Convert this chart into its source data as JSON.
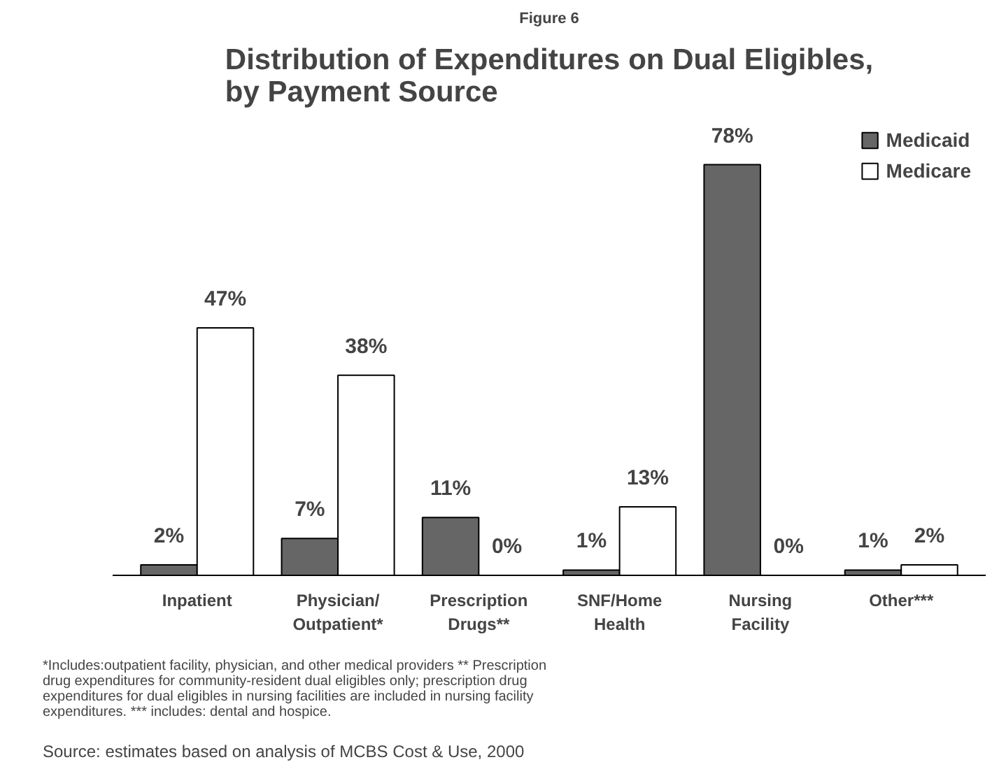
{
  "chart_data": {
    "type": "bar",
    "subtitle": "Figure 6",
    "title": "Distribution of Expenditures on Dual Eligibles,\nby Payment Source",
    "categories": [
      "Inpatient",
      "Physician/\nOutpatient*",
      "Prescription\nDrugs**",
      "SNF/Home\nHealth",
      "Nursing\nFacility",
      "Other***"
    ],
    "series": [
      {
        "name": "Medicaid",
        "color": "#666666",
        "values": [
          2,
          7,
          11,
          1,
          78,
          1
        ],
        "value_labels": [
          "2%",
          "7%",
          "11%",
          "1%",
          "78%",
          "1%"
        ]
      },
      {
        "name": "Medicare",
        "color": "#ffffff",
        "values": [
          47,
          38,
          0,
          13,
          0,
          2
        ],
        "value_labels": [
          "47%",
          "38%",
          "0%",
          "13%",
          "0%",
          "2%"
        ]
      }
    ],
    "grid": false,
    "legend": "top right",
    "annotations": [
      "*Includes:outpatient facility, physician, and other medical providers ** Prescription\ndrug expenditures for community-resident dual eligibles only; prescription drug\nexpenditures for dual eligibles in nursing facilities are included in nursing facility\nexpenditures. *** includes: dental and hospice.",
      "Source: estimates based on analysis of MCBS Cost & Use, 2000"
    ]
  }
}
